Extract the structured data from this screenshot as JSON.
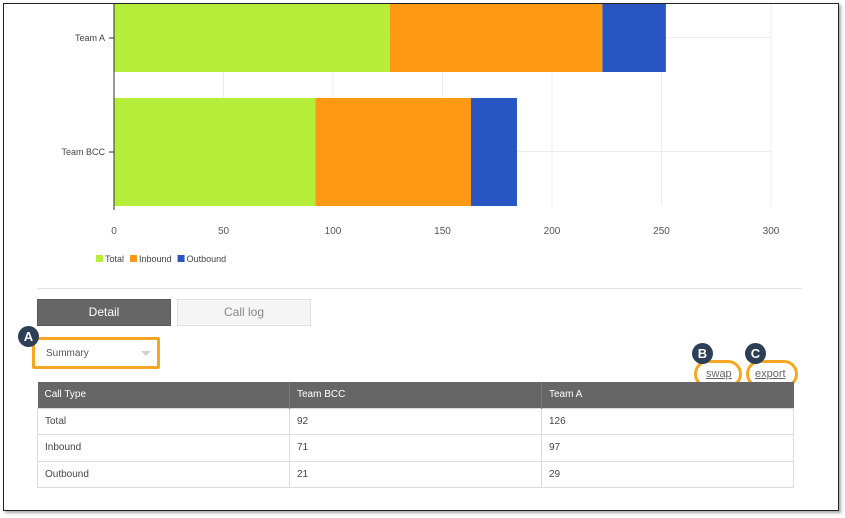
{
  "chart_data": {
    "type": "bar",
    "orientation": "horizontal",
    "stacked": true,
    "categories": [
      "Team A",
      "Team BCC"
    ],
    "series": [
      {
        "name": "Total",
        "values": [
          126,
          92
        ],
        "color": "#b5ed3b"
      },
      {
        "name": "Inbound",
        "values": [
          97,
          71
        ],
        "color": "#ff9913"
      },
      {
        "name": "Outbound",
        "values": [
          29,
          21
        ],
        "color": "#2855c2"
      }
    ],
    "xticks": [
      0,
      50,
      100,
      150,
      200,
      250,
      300
    ],
    "xlim": [
      0,
      300
    ],
    "grid": true,
    "legend_position": "bottom-left"
  },
  "tabs": {
    "detail_label": "Detail",
    "calllog_label": "Call log"
  },
  "view_select": {
    "value": "Summary"
  },
  "callouts": {
    "a": "A",
    "b": "B",
    "c": "C"
  },
  "links": {
    "swap": "swap",
    "export": "export"
  },
  "table": {
    "headers": [
      "Call Type",
      "Team BCC",
      "Team A"
    ],
    "rows": [
      [
        "Total",
        "92",
        "126"
      ],
      [
        "Inbound",
        "71",
        "97"
      ],
      [
        "Outbound",
        "21",
        "29"
      ]
    ]
  },
  "colors": {
    "accent_highlight": "#f5a623",
    "callout_bg": "#2c3f57",
    "header_bg": "#666666"
  }
}
